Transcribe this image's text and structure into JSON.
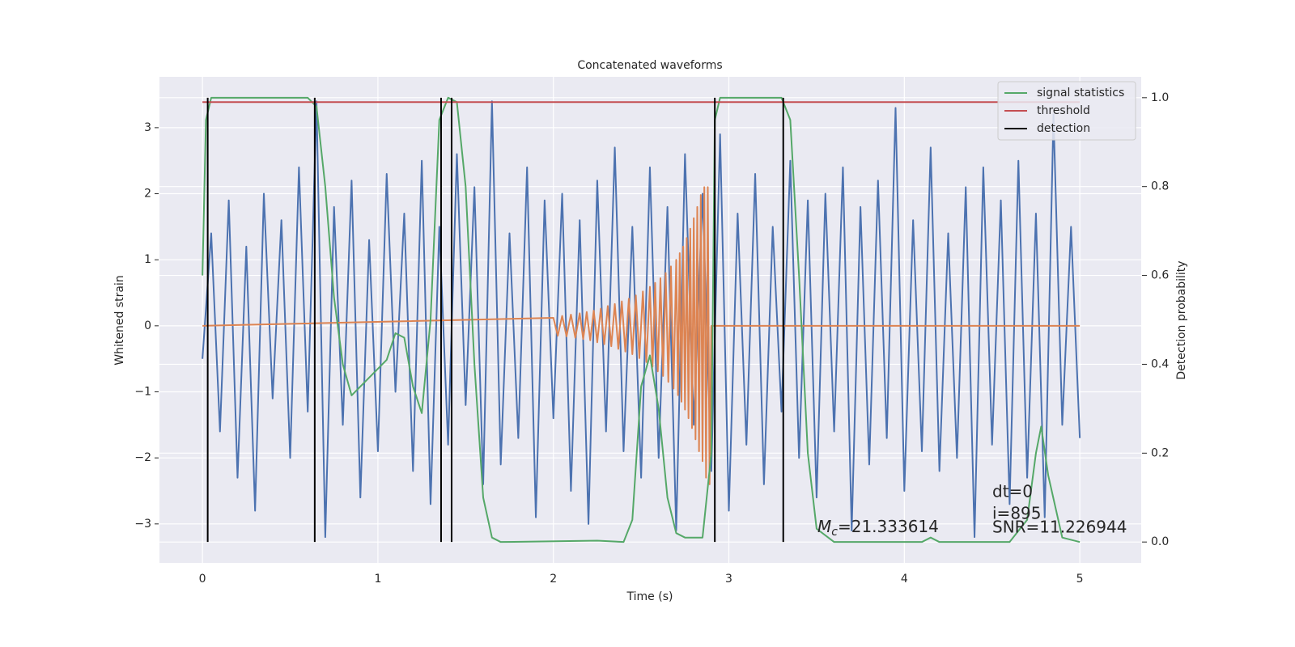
{
  "chart_data": {
    "type": "line",
    "title": "Concatenated waveforms",
    "xlabel": "Time (s)",
    "ylabel": "Whitened strain",
    "y2label": "Detection probability",
    "xlim": [
      -0.245,
      5.35
    ],
    "xticks": [
      0,
      1,
      2,
      3,
      4,
      5
    ],
    "ylim": [
      -3.59,
      3.77
    ],
    "yticks": [
      {
        "value": -3,
        "label": "−3"
      },
      {
        "value": -2,
        "label": "−2"
      },
      {
        "value": -1,
        "label": "−1"
      },
      0,
      1,
      2,
      3
    ],
    "y2lim": [
      -0.047,
      1.047
    ],
    "y2ticks": [
      {
        "value": 0,
        "label": "0.0"
      },
      {
        "value": 0.2,
        "label": "0.2"
      },
      {
        "value": 0.4,
        "label": "0.4"
      },
      {
        "value": 0.6,
        "label": "0.6"
      },
      {
        "value": 0.8,
        "label": "0.8"
      },
      {
        "value": 1,
        "label": "1.0"
      }
    ],
    "grid": true,
    "legend": "upper right",
    "series": [
      {
        "color": "#4c72b0",
        "x": [
          0,
          0.05,
          0.1,
          0.15,
          0.2,
          0.25,
          0.3,
          0.35,
          0.4,
          0.45,
          0.5,
          0.55,
          0.6,
          0.65,
          0.7,
          0.75,
          0.8,
          0.85,
          0.9,
          0.95,
          1,
          1.05,
          1.1,
          1.15,
          1.2,
          1.25,
          1.3,
          1.35,
          1.4,
          1.45,
          1.5,
          1.55,
          1.6,
          1.65,
          1.7,
          1.75,
          1.8,
          1.85,
          1.9,
          1.95,
          2,
          2.05,
          2.1,
          2.15,
          2.2,
          2.25,
          2.3,
          2.35,
          2.4,
          2.45,
          2.5,
          2.55,
          2.6,
          2.65,
          2.7,
          2.75,
          2.8,
          2.85,
          2.9,
          2.95,
          3,
          3.05,
          3.1,
          3.15,
          3.2,
          3.25,
          3.3,
          3.35,
          3.4,
          3.45,
          3.5,
          3.55,
          3.6,
          3.65,
          3.7,
          3.75,
          3.8,
          3.85,
          3.9,
          3.95,
          4,
          4.05,
          4.1,
          4.15,
          4.2,
          4.25,
          4.3,
          4.35,
          4.4,
          4.45,
          4.5,
          4.55,
          4.6,
          4.65,
          4.7,
          4.75,
          4.8,
          4.85,
          4.9,
          4.95,
          5
        ],
        "values": [
          -0.5,
          1.4,
          -1.6,
          1.9,
          -2.3,
          1.2,
          -2.8,
          2.0,
          -1.1,
          1.6,
          -2.0,
          2.4,
          -1.3,
          3.4,
          -3.2,
          1.8,
          -1.5,
          2.2,
          -2.6,
          1.3,
          -1.9,
          2.3,
          -1.0,
          1.7,
          -2.2,
          2.5,
          -2.7,
          1.5,
          -1.8,
          2.6,
          -1.2,
          2.1,
          -2.4,
          3.4,
          -2.1,
          1.4,
          -1.7,
          2.4,
          -2.9,
          1.9,
          -1.4,
          2.0,
          -2.5,
          1.6,
          -3.0,
          2.2,
          -1.6,
          2.7,
          -1.9,
          1.5,
          -2.3,
          2.4,
          -2.0,
          1.8,
          -3.1,
          2.6,
          -1.5,
          2.0,
          -2.2,
          2.9,
          -2.8,
          1.7,
          -1.8,
          2.3,
          -2.4,
          1.5,
          -1.3,
          2.5,
          -2.0,
          1.9,
          -2.6,
          2.0,
          -1.6,
          2.4,
          -3.1,
          1.8,
          -2.1,
          2.2,
          -1.7,
          3.3,
          -2.5,
          1.6,
          -1.9,
          2.7,
          -2.2,
          1.4,
          -2.0,
          2.1,
          -3.2,
          2.4,
          -1.8,
          1.9,
          -2.7,
          2.5,
          -2.3,
          1.7,
          -2.9,
          3.2,
          -1.5,
          1.5,
          -1.7
        ]
      },
      {
        "color": "#dd8452",
        "x": [
          0,
          2.0,
          2.025,
          2.05,
          2.075,
          2.1,
          2.125,
          2.15,
          2.17,
          2.19,
          2.21,
          2.23,
          2.25,
          2.27,
          2.29,
          2.31,
          2.33,
          2.35,
          2.37,
          2.39,
          2.41,
          2.43,
          2.45,
          2.47,
          2.49,
          2.51,
          2.53,
          2.55,
          2.565,
          2.58,
          2.595,
          2.61,
          2.625,
          2.64,
          2.655,
          2.67,
          2.685,
          2.7,
          2.71,
          2.72,
          2.73,
          2.74,
          2.75,
          2.76,
          2.77,
          2.78,
          2.79,
          2.8,
          2.81,
          2.82,
          2.83,
          2.84,
          2.85,
          2.86,
          2.87,
          2.88,
          2.89,
          2.9,
          5.0
        ],
        "values": [
          0,
          0.12,
          -0.15,
          0.15,
          -0.16,
          0.17,
          -0.18,
          0.19,
          -0.2,
          0.21,
          -0.22,
          0.23,
          -0.25,
          0.26,
          -0.28,
          0.3,
          -0.31,
          0.33,
          -0.35,
          0.37,
          -0.39,
          0.41,
          -0.43,
          0.46,
          -0.49,
          0.52,
          -0.55,
          0.59,
          -0.62,
          0.65,
          -0.69,
          0.72,
          -0.76,
          0.8,
          -0.85,
          0.9,
          -0.95,
          1.0,
          -1.05,
          1.1,
          -1.15,
          1.2,
          -1.27,
          1.33,
          -1.4,
          1.47,
          -1.55,
          1.63,
          -1.72,
          1.8,
          -1.9,
          1.98,
          -2.05,
          2.1,
          -2.3,
          2.1,
          -2.4,
          0,
          0
        ]
      },
      {
        "name": "signal statistics",
        "color": "#55a868",
        "axis": "y2",
        "x": [
          0,
          0.02,
          0.05,
          0.6,
          0.65,
          0.7,
          0.75,
          0.8,
          0.85,
          0.9,
          1.0,
          1.05,
          1.1,
          1.15,
          1.2,
          1.25,
          1.3,
          1.35,
          1.4,
          1.45,
          1.5,
          1.55,
          1.6,
          1.65,
          1.7,
          2.25,
          2.4,
          2.45,
          2.5,
          2.55,
          2.6,
          2.65,
          2.7,
          2.75,
          2.85,
          2.9,
          2.92,
          2.95,
          3.3,
          3.35,
          3.4,
          3.45,
          3.5,
          3.6,
          4.1,
          4.15,
          4.2,
          4.6,
          4.7,
          4.75,
          4.78,
          4.82,
          4.9,
          5.0
        ],
        "values": [
          0.6,
          0.95,
          1.0,
          1.0,
          0.98,
          0.8,
          0.55,
          0.4,
          0.33,
          0.35,
          0.39,
          0.41,
          0.47,
          0.46,
          0.35,
          0.29,
          0.5,
          0.95,
          1.0,
          0.99,
          0.8,
          0.4,
          0.1,
          0.01,
          0.0,
          0.003,
          0.0,
          0.05,
          0.35,
          0.42,
          0.3,
          0.1,
          0.02,
          0.01,
          0.01,
          0.2,
          0.95,
          1.0,
          1.0,
          0.95,
          0.6,
          0.2,
          0.03,
          0.0,
          0.0,
          0.01,
          0.0,
          0.0,
          0.05,
          0.2,
          0.26,
          0.15,
          0.01,
          0.0
        ]
      },
      {
        "name": "threshold",
        "color": "#c44e52",
        "axis": "y2",
        "x": [
          0,
          5
        ],
        "values": [
          0.99,
          0.99
        ]
      },
      {
        "name": "detection",
        "color": "#000000",
        "axis": "y2",
        "kind": "vlines",
        "x": [
          0.03,
          0.64,
          1.36,
          1.42,
          2.92,
          3.31
        ],
        "ymin": 0,
        "ymax": 1
      }
    ],
    "annotations": {
      "dt": "dt=0",
      "i": "i=895",
      "mc_symbol": "M",
      "mc_subscript": "c",
      "mc_value": "=21.333614",
      "snr": "SNR=11.226944"
    }
  }
}
